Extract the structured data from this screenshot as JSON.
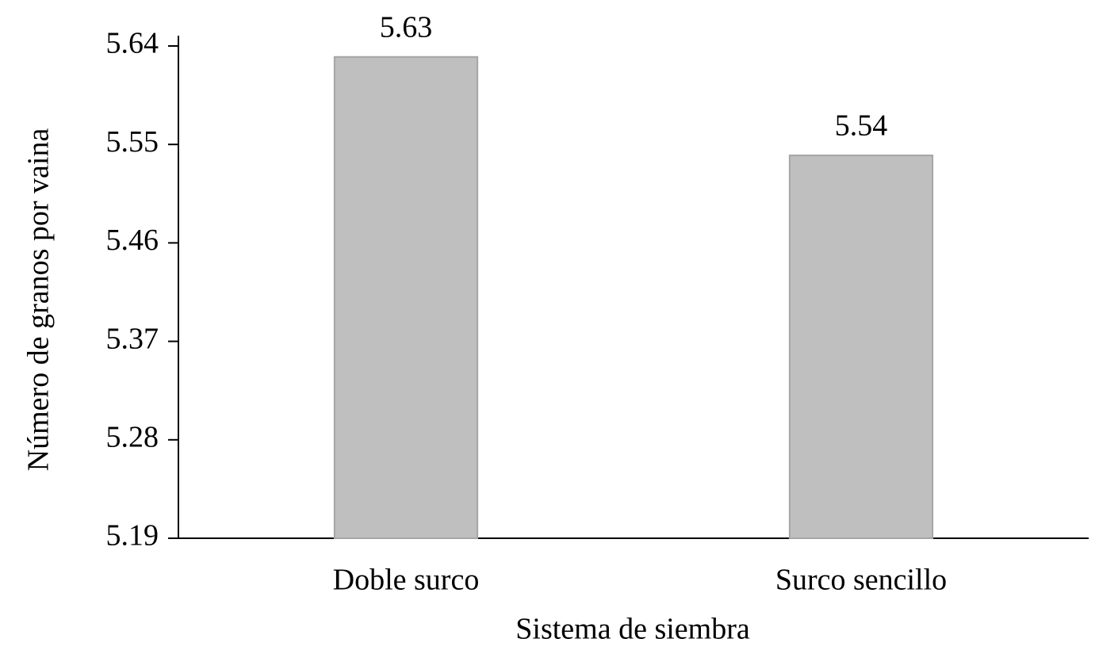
{
  "chart_data": {
    "type": "bar",
    "x_label": "Sistema de siembra",
    "y_label": "Número de granos por vaina",
    "categories": [
      "Doble surco",
      "Surco sencillo"
    ],
    "values": [
      5.63,
      5.54
    ],
    "color": "#bfbfbf",
    "ylim": [
      5.19,
      5.64
    ],
    "yticks": [
      5.19,
      5.28,
      5.37,
      5.46,
      5.55,
      5.64
    ],
    "grid": false
  }
}
